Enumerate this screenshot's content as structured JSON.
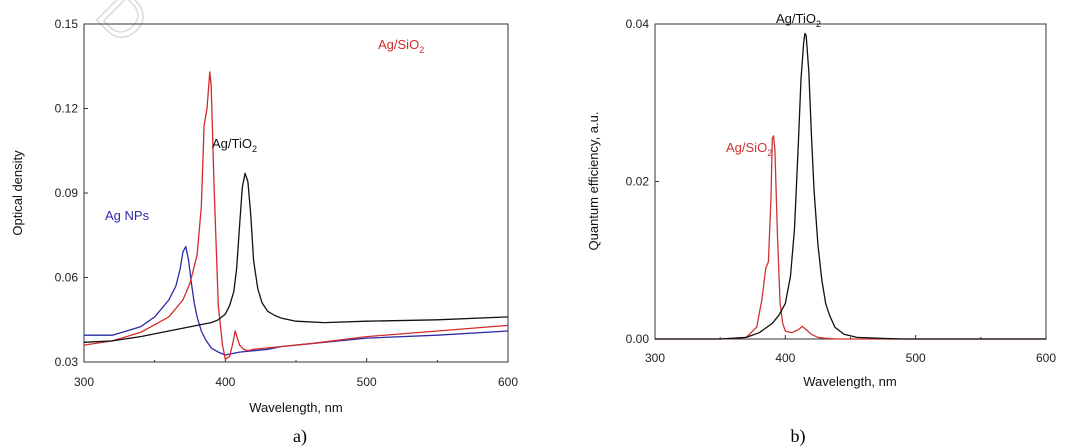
{
  "chart_data": [
    {
      "type": "line",
      "panel_label": "a)",
      "xlabel": "Wavelength, nm",
      "ylabel": "Optical density",
      "xlim": [
        300,
        600
      ],
      "ylim": [
        0.03,
        0.15
      ],
      "xticks": [
        300,
        400,
        500,
        600
      ],
      "yticks": [
        0.03,
        0.06,
        0.09,
        0.12,
        0.15
      ],
      "xtick_labels": [
        "300",
        "400",
        "500",
        "600"
      ],
      "ytick_labels": [
        "0.03",
        "0.06",
        "0.09",
        "0.12",
        "0.15"
      ],
      "grid": false,
      "series": [
        {
          "name": "Ag NPs",
          "color": "#2b2ba8",
          "x": [
            300,
            320,
            340,
            350,
            360,
            365,
            368,
            370,
            372,
            374,
            376,
            378,
            380,
            383,
            386,
            390,
            395,
            400,
            410,
            420,
            430,
            440,
            460,
            500,
            550,
            600
          ],
          "y": [
            0.0395,
            0.0395,
            0.0425,
            0.046,
            0.052,
            0.057,
            0.063,
            0.069,
            0.071,
            0.066,
            0.058,
            0.051,
            0.046,
            0.041,
            0.038,
            0.035,
            0.0335,
            0.0325,
            0.0335,
            0.034,
            0.0345,
            0.0355,
            0.0365,
            0.0385,
            0.0395,
            0.041
          ]
        },
        {
          "name": "Ag/SiO2",
          "color": "#d42a2a",
          "x": [
            300,
            320,
            340,
            360,
            370,
            375,
            380,
            383,
            385,
            387,
            389,
            390,
            392,
            395,
            398,
            400,
            403,
            405,
            407,
            410,
            413,
            416,
            420,
            430,
            440,
            460,
            500,
            550,
            600
          ],
          "y": [
            0.036,
            0.0375,
            0.0405,
            0.046,
            0.052,
            0.058,
            0.068,
            0.085,
            0.114,
            0.12,
            0.133,
            0.128,
            0.093,
            0.05,
            0.036,
            0.031,
            0.032,
            0.036,
            0.041,
            0.036,
            0.0345,
            0.034,
            0.0345,
            0.035,
            0.0355,
            0.0365,
            0.039,
            0.041,
            0.043
          ]
        },
        {
          "name": "Ag/TiO2",
          "color": "#111111",
          "x": [
            300,
            320,
            340,
            360,
            380,
            390,
            395,
            400,
            403,
            406,
            408,
            410,
            412,
            414,
            416,
            418,
            420,
            423,
            426,
            430,
            435,
            440,
            450,
            470,
            500,
            550,
            600
          ],
          "y": [
            0.037,
            0.0375,
            0.039,
            0.041,
            0.043,
            0.044,
            0.045,
            0.047,
            0.05,
            0.055,
            0.063,
            0.078,
            0.092,
            0.097,
            0.094,
            0.082,
            0.066,
            0.056,
            0.051,
            0.048,
            0.0465,
            0.0455,
            0.0445,
            0.044,
            0.0445,
            0.045,
            0.046
          ]
        }
      ]
    },
    {
      "type": "line",
      "panel_label": "b)",
      "xlabel": "Wavelength, nm",
      "ylabel": "Quantum efficiency, a.u.",
      "xlim": [
        300,
        600
      ],
      "ylim": [
        0,
        0.04
      ],
      "xticks": [
        300,
        400,
        500,
        600
      ],
      "yticks": [
        0,
        0.02,
        0.04
      ],
      "xtick_labels": [
        "300",
        "400",
        "500",
        "600"
      ],
      "ytick_labels": [
        "0.00",
        "0.02",
        "0.04"
      ],
      "grid": false,
      "series": [
        {
          "name": "Ag/SiO2",
          "color": "#cc3333",
          "x": [
            300,
            350,
            370,
            378,
            382,
            385,
            387,
            389,
            390,
            391,
            392,
            394,
            396,
            398,
            400,
            405,
            410,
            413,
            416,
            420,
            425,
            430,
            440,
            460,
            600
          ],
          "y": [
            0,
            0,
            0.0002,
            0.0015,
            0.005,
            0.009,
            0.0098,
            0.018,
            0.0255,
            0.0258,
            0.024,
            0.013,
            0.0045,
            0.002,
            0.001,
            0.0008,
            0.0012,
            0.0016,
            0.0012,
            0.0006,
            0.0002,
            0.0001,
            0,
            0,
            0
          ]
        },
        {
          "name": "Ag/TiO2",
          "color": "#111111",
          "x": [
            300,
            350,
            370,
            380,
            390,
            395,
            400,
            404,
            407,
            410,
            412,
            414,
            415,
            416,
            418,
            420,
            422,
            425,
            428,
            431,
            434,
            438,
            445,
            455,
            470,
            490,
            600
          ],
          "y": [
            0,
            0,
            0.0002,
            0.0008,
            0.002,
            0.003,
            0.0045,
            0.008,
            0.014,
            0.025,
            0.033,
            0.0375,
            0.0388,
            0.0385,
            0.034,
            0.026,
            0.019,
            0.012,
            0.0075,
            0.0045,
            0.003,
            0.0015,
            0.0006,
            0.0002,
            0.0001,
            0,
            0
          ]
        }
      ]
    }
  ],
  "watermark": "D"
}
